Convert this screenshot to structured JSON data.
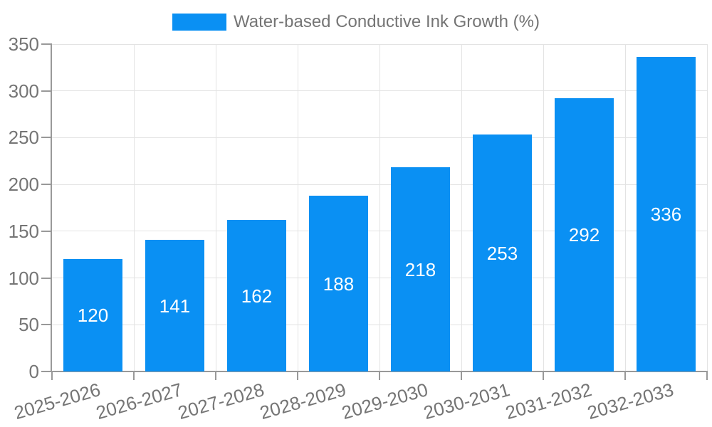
{
  "chart_data": {
    "type": "bar",
    "title": "",
    "xlabel": "",
    "ylabel": "",
    "categories": [
      "2025-2026",
      "2026-2027",
      "2027-2028",
      "2028-2029",
      "2029-2030",
      "2030-2031",
      "2031-2032",
      "2032-2033"
    ],
    "series": [
      {
        "name": "Water-based Conductive Ink Growth (%)",
        "values": [
          120,
          141,
          162,
          188,
          218,
          253,
          292,
          336
        ],
        "color": "#0a90f3"
      }
    ],
    "ylim": [
      0,
      350
    ],
    "yticks": [
      0,
      50,
      100,
      150,
      200,
      250,
      300,
      350
    ],
    "grid": true,
    "legend_position": "top-center",
    "x_tick_label_rotation_deg": -16,
    "value_label_position": "inside-center",
    "value_label_color": "#ffffff",
    "axis_color": "#999999",
    "grid_color": "#e3e3e3",
    "tick_label_color": "#757575",
    "background_color": "#ffffff"
  }
}
